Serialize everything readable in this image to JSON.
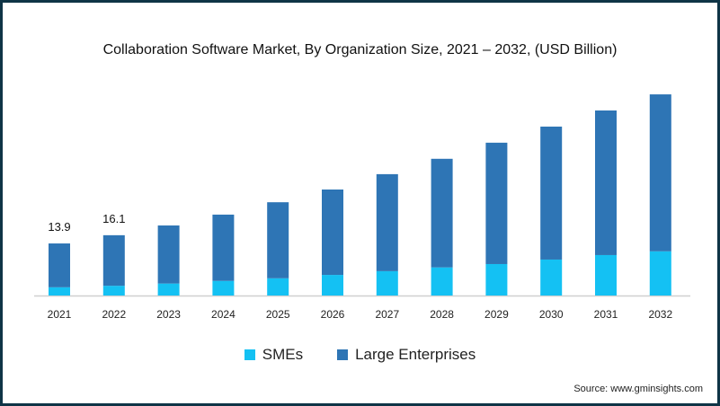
{
  "chart_data": {
    "type": "bar",
    "stacked": true,
    "title": "Collaboration Software Market, By Organization Size, 2021 – 2032, (USD Billion)",
    "categories": [
      "2021",
      "2022",
      "2023",
      "2024",
      "2025",
      "2026",
      "2027",
      "2028",
      "2029",
      "2030",
      "2031",
      "2032"
    ],
    "series": [
      {
        "name": "SMEs",
        "color": "#14c1f3",
        "values": [
          2.2,
          2.6,
          3.2,
          3.9,
          4.6,
          5.5,
          6.5,
          7.5,
          8.4,
          9.6,
          10.8,
          11.8
        ]
      },
      {
        "name": "Large Enterprises",
        "color": "#2e75b5",
        "values": [
          11.7,
          13.5,
          15.5,
          17.7,
          20.3,
          22.8,
          25.9,
          29.0,
          32.4,
          35.5,
          38.6,
          41.9
        ]
      }
    ],
    "data_labels": [
      {
        "category": "2021",
        "text": "13.9"
      },
      {
        "category": "2022",
        "text": "16.1"
      }
    ],
    "xlabel": "",
    "ylabel": "",
    "ylim": [
      0,
      55
    ],
    "grid": false,
    "legend": "bottom"
  },
  "source": "Source: www.gminsights.com"
}
